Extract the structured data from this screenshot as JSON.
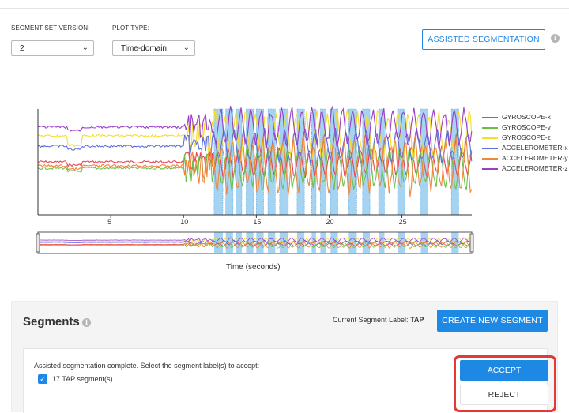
{
  "controls": {
    "segment_set_version_label": "SEGMENT SET VERSION:",
    "segment_set_version_value": "2",
    "plot_type_label": "PLOT TYPE:",
    "plot_type_value": "Time-domain",
    "assisted_segmentation_label": "ASSISTED SEGMENTATION",
    "info_glyph": "i"
  },
  "chart_data": {
    "type": "line",
    "xlabel": "Time (seconds)",
    "xticks": [
      5,
      10,
      15,
      20,
      25
    ],
    "xlim": [
      0,
      29.8
    ],
    "series": [
      {
        "name": "GYROSCOPE-x",
        "color": "#e8445a"
      },
      {
        "name": "GYROSCOPE-y",
        "color": "#6cc04a"
      },
      {
        "name": "GYROSCOPE-z",
        "color": "#f5dc2e"
      },
      {
        "name": "ACCELEROMETER-x",
        "color": "#5c6fdd"
      },
      {
        "name": "ACCELEROMETER-y",
        "color": "#f0863a"
      },
      {
        "name": "ACCELEROMETER-z",
        "color": "#9a3fc8"
      }
    ],
    "segments": [
      [
        12.1,
        12.7
      ],
      [
        12.9,
        13.4
      ],
      [
        13.6,
        14.0
      ],
      [
        14.3,
        14.8
      ],
      [
        15.0,
        15.5
      ],
      [
        15.8,
        16.3
      ],
      [
        16.6,
        17.2
      ],
      [
        17.8,
        18.3
      ],
      [
        18.8,
        19.1
      ],
      [
        19.4,
        19.8
      ],
      [
        20.1,
        20.6
      ],
      [
        21.3,
        21.9
      ],
      [
        22.3,
        22.8
      ],
      [
        23.4,
        23.8
      ],
      [
        24.7,
        25.2
      ],
      [
        26.3,
        26.8
      ],
      [
        28.4,
        28.9
      ]
    ],
    "segment_color": "#8ec9ef"
  },
  "segments_panel": {
    "title": "Segments",
    "current_label_prefix": "Current Segment Label: ",
    "current_label_value": "TAP",
    "create_button": "CREATE NEW SEGMENT",
    "message": "Assisted segmentation complete. Select the segment label(s) to accept:",
    "checkbox_label": "17 TAP segment(s)",
    "check_glyph": "✓",
    "accept_button": "ACCEPT",
    "reject_button": "REJECT"
  }
}
